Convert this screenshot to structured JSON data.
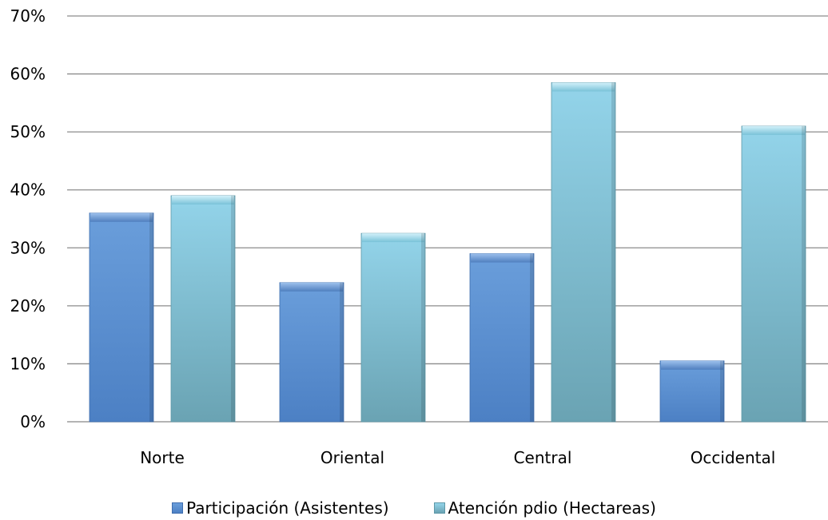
{
  "chart_data": {
    "type": "bar",
    "categories": [
      "Norte",
      "Oriental",
      "Central",
      "Occidental"
    ],
    "series": [
      {
        "name": "Participación (Asistentes)",
        "values": [
          36,
          24,
          29,
          10.5
        ],
        "color": "#5B8FCF"
      },
      {
        "name": "Atención pdio (Hectareas)",
        "values": [
          39,
          32.5,
          58.5,
          51
        ],
        "color": "#7FC6DA"
      }
    ],
    "ylim": [
      0,
      70
    ],
    "yticks": [
      0,
      10,
      20,
      30,
      40,
      50,
      60,
      70
    ],
    "ytick_labels": [
      "0%",
      "10%",
      "20%",
      "30%",
      "40%",
      "50%",
      "60%",
      "70%"
    ],
    "grid": true,
    "legend_position": "bottom",
    "title": "",
    "xlabel": "",
    "ylabel": ""
  }
}
